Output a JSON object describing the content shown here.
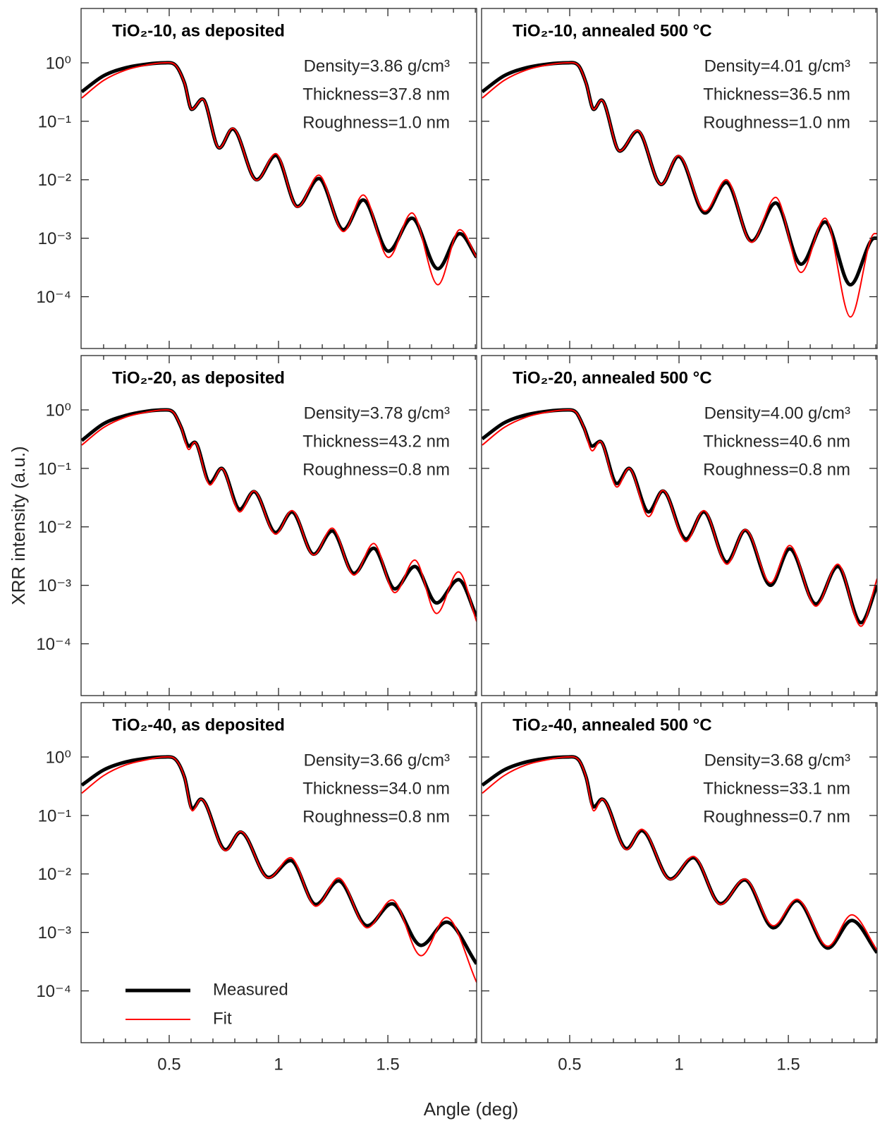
{
  "figure": {
    "xlabel": "Angle (deg)",
    "ylabel": "XRR intensity (a.u.)"
  },
  "chart_data": [
    {
      "type": "line",
      "title": "TiO₂-10, as deposited",
      "annotations": [
        "Density=3.86 g/cm³",
        "Thickness=37.8 nm",
        "Roughness=1.0 nm"
      ],
      "x": [
        0.1,
        0.2,
        0.3,
        0.4,
        0.48,
        0.53,
        0.57,
        0.603,
        0.652,
        0.729,
        0.79,
        0.9,
        0.987,
        1.087,
        1.184,
        1.297,
        1.387,
        1.503,
        1.61,
        1.729,
        1.829,
        1.906
      ],
      "series": [
        {
          "color": "#000000",
          "values": [
            0.32,
            0.6,
            0.82,
            0.95,
            1.0,
            0.9,
            0.45,
            0.16,
            0.24,
            0.035,
            0.074,
            0.01,
            0.026,
            0.0035,
            0.0105,
            0.0014,
            0.0045,
            0.0006,
            0.0022,
            0.0003,
            0.0012,
            0.00047
          ]
        },
        {
          "color": "#ff0000",
          "values": [
            0.25,
            0.5,
            0.75,
            0.92,
            1.0,
            0.9,
            0.45,
            0.16,
            0.24,
            0.035,
            0.076,
            0.0098,
            0.028,
            0.0034,
            0.012,
            0.0013,
            0.0055,
            0.00047,
            0.0027,
            0.00016,
            0.0014,
            0.00047
          ]
        }
      ],
      "xlim": [
        0.097,
        1.906
      ],
      "ylim": [
        1.3e-05,
        8.5
      ],
      "log_y": true,
      "xticks": [
        0.5,
        1,
        1.5
      ],
      "xminorticks": [
        0.2,
        0.3,
        0.4,
        0.6,
        0.7,
        0.8,
        0.9,
        1.1,
        1.2,
        1.3,
        1.4,
        1.6,
        1.7,
        1.8,
        1.9
      ],
      "yticks": [
        {
          "value": 1,
          "label": "10⁰"
        },
        {
          "value": 0.1,
          "label": "10⁻¹"
        },
        {
          "value": 0.01,
          "label": "10⁻²"
        },
        {
          "value": 0.001,
          "label": "10⁻³"
        },
        {
          "value": 0.0001,
          "label": "10⁻⁴"
        }
      ]
    },
    {
      "type": "line",
      "title": "TiO₂-10, annealed 500 °C",
      "annotations": [
        "Density=4.01 g/cm³",
        "Thickness=36.5 nm",
        "Roughness=1.0 nm"
      ],
      "x": [
        0.1,
        0.2,
        0.3,
        0.4,
        0.49,
        0.54,
        0.575,
        0.61,
        0.645,
        0.729,
        0.81,
        0.919,
        0.997,
        1.119,
        1.216,
        1.332,
        1.442,
        1.558,
        1.668,
        1.784,
        1.894,
        1.906
      ],
      "series": [
        {
          "color": "#000000",
          "values": [
            0.32,
            0.6,
            0.82,
            0.95,
            1.0,
            0.9,
            0.45,
            0.16,
            0.23,
            0.031,
            0.068,
            0.0083,
            0.025,
            0.0027,
            0.009,
            0.00089,
            0.004,
            0.00036,
            0.0019,
            0.00016,
            0.001,
            0.001
          ]
        },
        {
          "color": "#ff0000",
          "values": [
            0.25,
            0.5,
            0.75,
            0.92,
            1.0,
            0.9,
            0.45,
            0.16,
            0.23,
            0.031,
            0.07,
            0.0083,
            0.026,
            0.0029,
            0.01,
            0.00085,
            0.005,
            0.00026,
            0.0022,
            4.5e-05,
            0.0012,
            0.0012
          ]
        }
      ],
      "xlim": [
        0.097,
        1.906
      ],
      "ylim": [
        1.3e-05,
        8.5
      ],
      "log_y": true,
      "xticks": [
        0.5,
        1,
        1.5
      ],
      "xminorticks": [
        0.2,
        0.3,
        0.4,
        0.6,
        0.7,
        0.8,
        0.9,
        1.1,
        1.2,
        1.3,
        1.4,
        1.6,
        1.7,
        1.8,
        1.9
      ],
      "yticks": [
        1,
        0.1,
        0.01,
        0.001,
        0.0001
      ]
    },
    {
      "type": "line",
      "title": "TiO₂-20, as deposited",
      "annotations": [
        "Density=3.78 g/cm³",
        "Thickness=43.2 nm",
        "Roughness=0.8 nm"
      ],
      "x": [
        0.1,
        0.2,
        0.3,
        0.4,
        0.48,
        0.52,
        0.555,
        0.59,
        0.616,
        0.687,
        0.739,
        0.823,
        0.887,
        0.987,
        1.061,
        1.161,
        1.245,
        1.345,
        1.435,
        1.532,
        1.623,
        1.723,
        1.823,
        1.906
      ],
      "series": [
        {
          "color": "#000000",
          "values": [
            0.3,
            0.58,
            0.8,
            0.95,
            1.0,
            0.9,
            0.5,
            0.24,
            0.28,
            0.057,
            0.1,
            0.02,
            0.04,
            0.008,
            0.018,
            0.0034,
            0.0085,
            0.0016,
            0.0043,
            0.00087,
            0.0021,
            0.0005,
            0.00125,
            0.00029
          ]
        },
        {
          "color": "#ff0000",
          "values": [
            0.25,
            0.5,
            0.75,
            0.92,
            1.0,
            0.9,
            0.5,
            0.21,
            0.28,
            0.052,
            0.1,
            0.018,
            0.041,
            0.0075,
            0.019,
            0.0033,
            0.0095,
            0.0015,
            0.0052,
            0.00075,
            0.0027,
            0.00033,
            0.0017,
            0.00024
          ]
        }
      ],
      "xlim": [
        0.097,
        1.906
      ],
      "ylim": [
        1.3e-05,
        8.5
      ],
      "log_y": true,
      "xticks": [
        0.5,
        1,
        1.5
      ],
      "xminorticks": [
        0.2,
        0.3,
        0.4,
        0.6,
        0.7,
        0.8,
        0.9,
        1.1,
        1.2,
        1.3,
        1.4,
        1.6,
        1.7,
        1.8,
        1.9
      ],
      "yticks": [
        {
          "value": 1,
          "label": "10⁰"
        },
        {
          "value": 0.1,
          "label": "10⁻¹"
        },
        {
          "value": 0.01,
          "label": "10⁻²"
        },
        {
          "value": 0.001,
          "label": "10⁻³"
        },
        {
          "value": 0.0001,
          "label": "10⁻⁴"
        }
      ]
    },
    {
      "type": "line",
      "title": "TiO₂-20, annealed 500 °C",
      "annotations": [
        "Density=4.00 g/cm³",
        "Thickness=40.6 nm",
        "Roughness=0.8 nm"
      ],
      "x": [
        0.1,
        0.2,
        0.3,
        0.4,
        0.49,
        0.53,
        0.565,
        0.603,
        0.639,
        0.716,
        0.771,
        0.861,
        0.926,
        1.032,
        1.113,
        1.219,
        1.303,
        1.419,
        1.506,
        1.626,
        1.726,
        1.832,
        1.906
      ],
      "series": [
        {
          "color": "#000000",
          "values": [
            0.32,
            0.6,
            0.82,
            0.95,
            1.0,
            0.9,
            0.5,
            0.24,
            0.29,
            0.055,
            0.1,
            0.018,
            0.041,
            0.0062,
            0.018,
            0.0025,
            0.0087,
            0.001,
            0.0042,
            0.00048,
            0.0021,
            0.00023,
            0.001
          ]
        },
        {
          "color": "#ff0000",
          "values": [
            0.25,
            0.5,
            0.75,
            0.92,
            1.0,
            0.9,
            0.5,
            0.2,
            0.29,
            0.048,
            0.1,
            0.015,
            0.042,
            0.0056,
            0.019,
            0.0023,
            0.009,
            0.0011,
            0.0048,
            0.00044,
            0.0023,
            0.0002,
            0.0013
          ]
        }
      ],
      "xlim": [
        0.097,
        1.906
      ],
      "ylim": [
        1.3e-05,
        8.5
      ],
      "log_y": true,
      "xticks": [
        0.5,
        1,
        1.5
      ],
      "xminorticks": [
        0.2,
        0.3,
        0.4,
        0.6,
        0.7,
        0.8,
        0.9,
        1.1,
        1.2,
        1.3,
        1.4,
        1.6,
        1.7,
        1.8,
        1.9
      ],
      "yticks": [
        1,
        0.1,
        0.01,
        0.001,
        0.0001
      ]
    },
    {
      "type": "line",
      "title": "TiO₂-40, as deposited",
      "annotations": [
        "Density=3.66 g/cm³",
        "Thickness=34.0 nm",
        "Roughness=0.8 nm"
      ],
      "x": [
        0.1,
        0.2,
        0.3,
        0.4,
        0.48,
        0.53,
        0.57,
        0.606,
        0.645,
        0.758,
        0.826,
        0.955,
        1.055,
        1.171,
        1.274,
        1.406,
        1.519,
        1.652,
        1.768,
        1.906
      ],
      "series": [
        {
          "name": "Measured",
          "color": "#000000",
          "values": [
            0.33,
            0.6,
            0.82,
            0.95,
            1.0,
            0.9,
            0.45,
            0.13,
            0.19,
            0.026,
            0.052,
            0.0087,
            0.017,
            0.003,
            0.0076,
            0.0013,
            0.0031,
            0.0006,
            0.0015,
            0.00029
          ]
        },
        {
          "name": "Fit",
          "color": "#ff0000",
          "values": [
            0.24,
            0.48,
            0.73,
            0.9,
            1.0,
            0.9,
            0.45,
            0.12,
            0.19,
            0.025,
            0.053,
            0.0085,
            0.019,
            0.0028,
            0.0085,
            0.0012,
            0.0036,
            0.0004,
            0.0018,
            0.00014
          ]
        }
      ],
      "legend": "lower left",
      "xlim": [
        0.097,
        1.906
      ],
      "ylim": [
        1.3e-05,
        8.5
      ],
      "log_y": true,
      "xticks": [
        0.5,
        1,
        1.5
      ],
      "xminorticks": [
        0.2,
        0.3,
        0.4,
        0.6,
        0.7,
        0.8,
        0.9,
        1.1,
        1.2,
        1.3,
        1.4,
        1.6,
        1.7,
        1.8,
        1.9
      ],
      "yticks": [
        {
          "value": 1,
          "label": "10⁰"
        },
        {
          "value": 0.1,
          "label": "10⁻¹"
        },
        {
          "value": 0.01,
          "label": "10⁻²"
        },
        {
          "value": 0.001,
          "label": "10⁻³"
        },
        {
          "value": 0.0001,
          "label": "10⁻⁴"
        }
      ]
    },
    {
      "type": "line",
      "title": "TiO₂-40, annealed 500 °C",
      "annotations": [
        "Density=3.68 g/cm³",
        "Thickness=33.1 nm",
        "Roughness=0.7 nm"
      ],
      "x": [
        0.1,
        0.2,
        0.3,
        0.4,
        0.49,
        0.54,
        0.575,
        0.61,
        0.648,
        0.761,
        0.829,
        0.961,
        1.065,
        1.19,
        1.3,
        1.432,
        1.539,
        1.681,
        1.79,
        1.906
      ],
      "series": [
        {
          "color": "#000000",
          "values": [
            0.33,
            0.6,
            0.82,
            0.95,
            1.0,
            0.9,
            0.45,
            0.14,
            0.19,
            0.027,
            0.055,
            0.0082,
            0.019,
            0.0031,
            0.0079,
            0.0012,
            0.0035,
            0.00054,
            0.0016,
            0.00045
          ]
        },
        {
          "color": "#ff0000",
          "values": [
            0.24,
            0.48,
            0.73,
            0.9,
            1.0,
            0.9,
            0.45,
            0.12,
            0.19,
            0.026,
            0.058,
            0.008,
            0.02,
            0.003,
            0.0082,
            0.0013,
            0.0037,
            0.00058,
            0.002,
            0.0005
          ]
        }
      ],
      "xlim": [
        0.097,
        1.906
      ],
      "ylim": [
        1.3e-05,
        8.5
      ],
      "log_y": true,
      "xticks": [
        0.5,
        1,
        1.5
      ],
      "xminorticks": [
        0.2,
        0.3,
        0.4,
        0.6,
        0.7,
        0.8,
        0.9,
        1.1,
        1.2,
        1.3,
        1.4,
        1.6,
        1.7,
        1.8,
        1.9
      ],
      "yticks": [
        1,
        0.1,
        0.01,
        0.001,
        0.0001
      ]
    }
  ]
}
